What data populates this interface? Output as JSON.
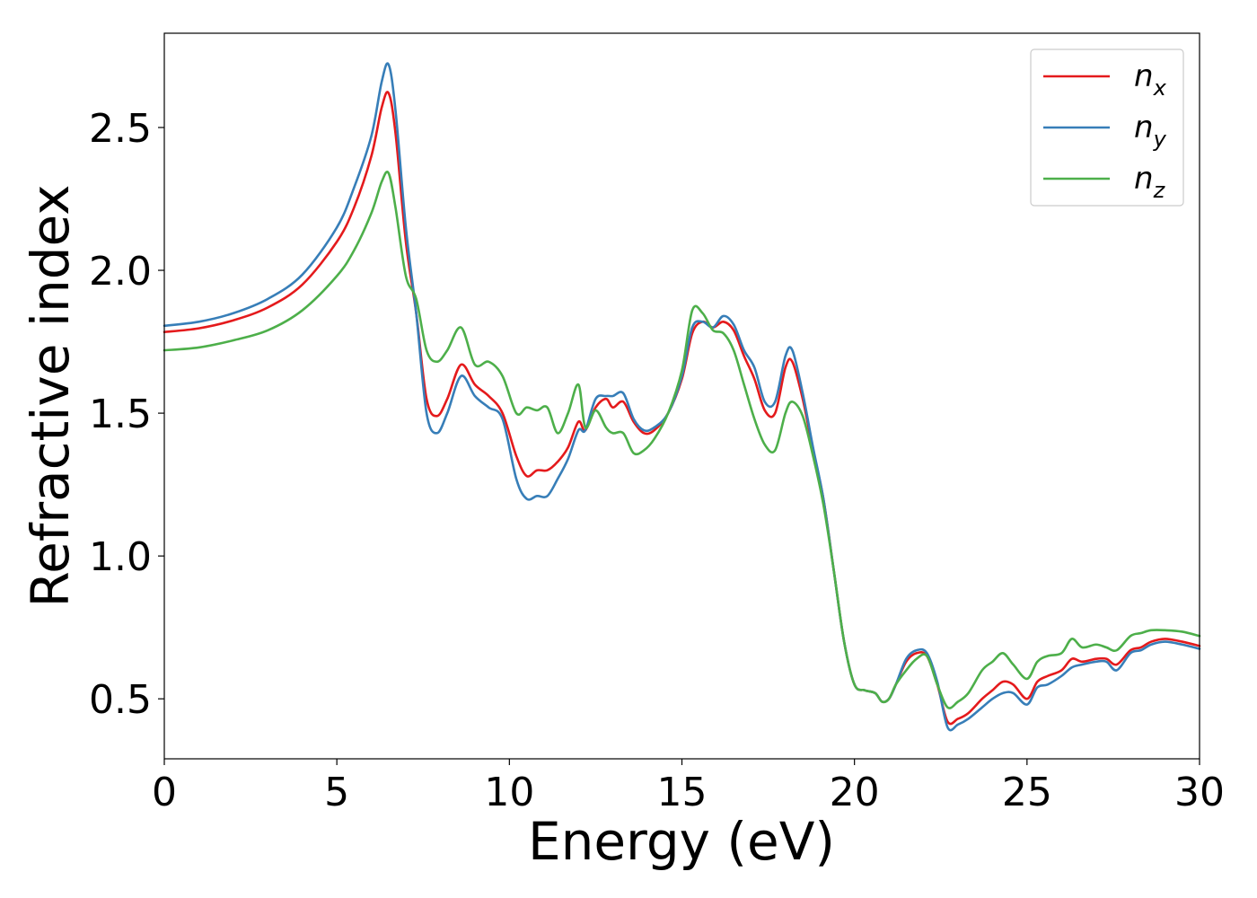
{
  "chart_data": {
    "type": "line",
    "title": "",
    "xlabel": "Energy (eV)",
    "ylabel": "Refractive index",
    "xlim": [
      0,
      30
    ],
    "ylim": [
      0.29,
      2.83
    ],
    "xticks": [
      0,
      5,
      10,
      15,
      20,
      25,
      30
    ],
    "xtick_labels": [
      "0",
      "5",
      "10",
      "15",
      "20",
      "25",
      "30"
    ],
    "yticks": [
      0.5,
      1.0,
      1.5,
      2.0,
      2.5
    ],
    "ytick_labels": [
      "0.5",
      "1.0",
      "1.5",
      "2.0",
      "2.5"
    ],
    "grid": false,
    "legend": "top-right",
    "series": [
      {
        "name": "n_x",
        "label_base": "n",
        "label_sub": "x",
        "color": "#e41a1c",
        "x": [
          0,
          1,
          2,
          3,
          4,
          5,
          5.5,
          6,
          6.3,
          6.5,
          6.7,
          7,
          7.3,
          7.6,
          7.9,
          8.2,
          8.6,
          9,
          9.4,
          9.8,
          10.2,
          10.5,
          10.8,
          11.1,
          11.4,
          11.7,
          12,
          12.2,
          12.5,
          12.8,
          13,
          13.3,
          13.6,
          13.9,
          14.2,
          14.6,
          15,
          15.3,
          15.6,
          15.9,
          16.2,
          16.5,
          16.8,
          17.1,
          17.4,
          17.7,
          18,
          18.2,
          18.5,
          18.8,
          19.1,
          19.4,
          19.7,
          20,
          20.3,
          20.6,
          20.8,
          21,
          21.2,
          21.5,
          21.8,
          22.1,
          22.4,
          22.7,
          23,
          23.3,
          23.7,
          24,
          24.3,
          24.6,
          25,
          25.3,
          25.6,
          26,
          26.3,
          26.6,
          27,
          27.3,
          27.6,
          28,
          28.3,
          28.6,
          29,
          29.5,
          30
        ],
        "y": [
          1.784,
          1.797,
          1.825,
          1.87,
          1.95,
          2.1,
          2.22,
          2.4,
          2.57,
          2.62,
          2.48,
          2.1,
          1.85,
          1.55,
          1.49,
          1.55,
          1.67,
          1.6,
          1.56,
          1.5,
          1.35,
          1.28,
          1.3,
          1.3,
          1.33,
          1.38,
          1.47,
          1.44,
          1.52,
          1.55,
          1.52,
          1.54,
          1.47,
          1.43,
          1.44,
          1.5,
          1.62,
          1.78,
          1.82,
          1.8,
          1.82,
          1.79,
          1.7,
          1.62,
          1.51,
          1.5,
          1.66,
          1.68,
          1.55,
          1.37,
          1.2,
          0.95,
          0.7,
          0.55,
          0.53,
          0.52,
          0.49,
          0.5,
          0.55,
          0.63,
          0.66,
          0.65,
          0.55,
          0.42,
          0.43,
          0.45,
          0.5,
          0.53,
          0.56,
          0.55,
          0.5,
          0.56,
          0.58,
          0.6,
          0.64,
          0.63,
          0.64,
          0.64,
          0.62,
          0.67,
          0.68,
          0.7,
          0.71,
          0.7,
          0.685
        ]
      },
      {
        "name": "n_y",
        "label_base": "n",
        "label_sub": "y",
        "color": "#377eb8",
        "x": [
          0,
          1,
          2,
          3,
          4,
          5,
          5.5,
          6,
          6.3,
          6.5,
          6.7,
          7,
          7.3,
          7.6,
          7.9,
          8.2,
          8.6,
          9,
          9.4,
          9.8,
          10.2,
          10.5,
          10.8,
          11.1,
          11.4,
          11.7,
          12,
          12.2,
          12.5,
          12.8,
          13,
          13.3,
          13.6,
          13.9,
          14.2,
          14.6,
          15,
          15.3,
          15.6,
          15.9,
          16.2,
          16.5,
          16.8,
          17.1,
          17.4,
          17.7,
          18,
          18.2,
          18.5,
          18.8,
          19.1,
          19.4,
          19.7,
          20,
          20.3,
          20.6,
          20.8,
          21,
          21.2,
          21.5,
          21.8,
          22.1,
          22.4,
          22.7,
          23,
          23.3,
          23.7,
          24,
          24.3,
          24.6,
          25,
          25.3,
          25.6,
          26,
          26.3,
          26.6,
          27,
          27.3,
          27.6,
          28,
          28.3,
          28.6,
          29,
          29.5,
          30
        ],
        "y": [
          1.806,
          1.82,
          1.85,
          1.9,
          1.985,
          2.15,
          2.29,
          2.47,
          2.66,
          2.72,
          2.56,
          2.15,
          1.85,
          1.5,
          1.43,
          1.5,
          1.63,
          1.56,
          1.52,
          1.48,
          1.27,
          1.2,
          1.21,
          1.21,
          1.27,
          1.34,
          1.44,
          1.44,
          1.55,
          1.56,
          1.56,
          1.57,
          1.48,
          1.44,
          1.45,
          1.5,
          1.63,
          1.8,
          1.82,
          1.8,
          1.84,
          1.81,
          1.72,
          1.66,
          1.54,
          1.54,
          1.7,
          1.72,
          1.57,
          1.38,
          1.2,
          0.95,
          0.7,
          0.55,
          0.53,
          0.52,
          0.49,
          0.5,
          0.55,
          0.64,
          0.67,
          0.66,
          0.56,
          0.4,
          0.41,
          0.43,
          0.47,
          0.5,
          0.52,
          0.52,
          0.48,
          0.54,
          0.55,
          0.58,
          0.61,
          0.62,
          0.63,
          0.63,
          0.6,
          0.66,
          0.67,
          0.69,
          0.7,
          0.69,
          0.675
        ]
      },
      {
        "name": "n_z",
        "label_base": "n",
        "label_sub": "z",
        "color": "#4daf4a",
        "x": [
          0,
          1,
          2,
          3,
          4,
          5,
          5.5,
          6,
          6.3,
          6.5,
          6.7,
          7,
          7.3,
          7.6,
          7.9,
          8.2,
          8.6,
          9,
          9.4,
          9.8,
          10.2,
          10.5,
          10.8,
          11.1,
          11.4,
          11.7,
          12,
          12.2,
          12.5,
          12.8,
          13,
          13.3,
          13.6,
          13.9,
          14.2,
          14.6,
          15,
          15.3,
          15.6,
          15.9,
          16.2,
          16.5,
          16.8,
          17.1,
          17.4,
          17.7,
          18,
          18.2,
          18.5,
          18.8,
          19.1,
          19.4,
          19.7,
          20,
          20.3,
          20.6,
          20.8,
          21,
          21.2,
          21.5,
          21.8,
          22.1,
          22.4,
          22.7,
          23,
          23.3,
          23.7,
          24,
          24.3,
          24.6,
          25,
          25.3,
          25.6,
          26,
          26.3,
          26.6,
          27,
          27.3,
          27.6,
          28,
          28.3,
          28.6,
          29,
          29.5,
          30
        ],
        "y": [
          1.72,
          1.73,
          1.755,
          1.79,
          1.86,
          1.98,
          2.07,
          2.2,
          2.31,
          2.34,
          2.22,
          1.98,
          1.9,
          1.72,
          1.68,
          1.72,
          1.8,
          1.67,
          1.68,
          1.63,
          1.5,
          1.52,
          1.51,
          1.52,
          1.43,
          1.5,
          1.6,
          1.45,
          1.51,
          1.45,
          1.43,
          1.43,
          1.36,
          1.37,
          1.41,
          1.5,
          1.65,
          1.86,
          1.85,
          1.79,
          1.78,
          1.72,
          1.6,
          1.48,
          1.39,
          1.37,
          1.5,
          1.54,
          1.49,
          1.35,
          1.18,
          0.95,
          0.7,
          0.55,
          0.53,
          0.52,
          0.49,
          0.5,
          0.55,
          0.6,
          0.64,
          0.65,
          0.55,
          0.47,
          0.49,
          0.52,
          0.6,
          0.63,
          0.66,
          0.62,
          0.57,
          0.63,
          0.65,
          0.66,
          0.71,
          0.68,
          0.69,
          0.68,
          0.67,
          0.72,
          0.73,
          0.74,
          0.74,
          0.735,
          0.72
        ]
      }
    ]
  }
}
